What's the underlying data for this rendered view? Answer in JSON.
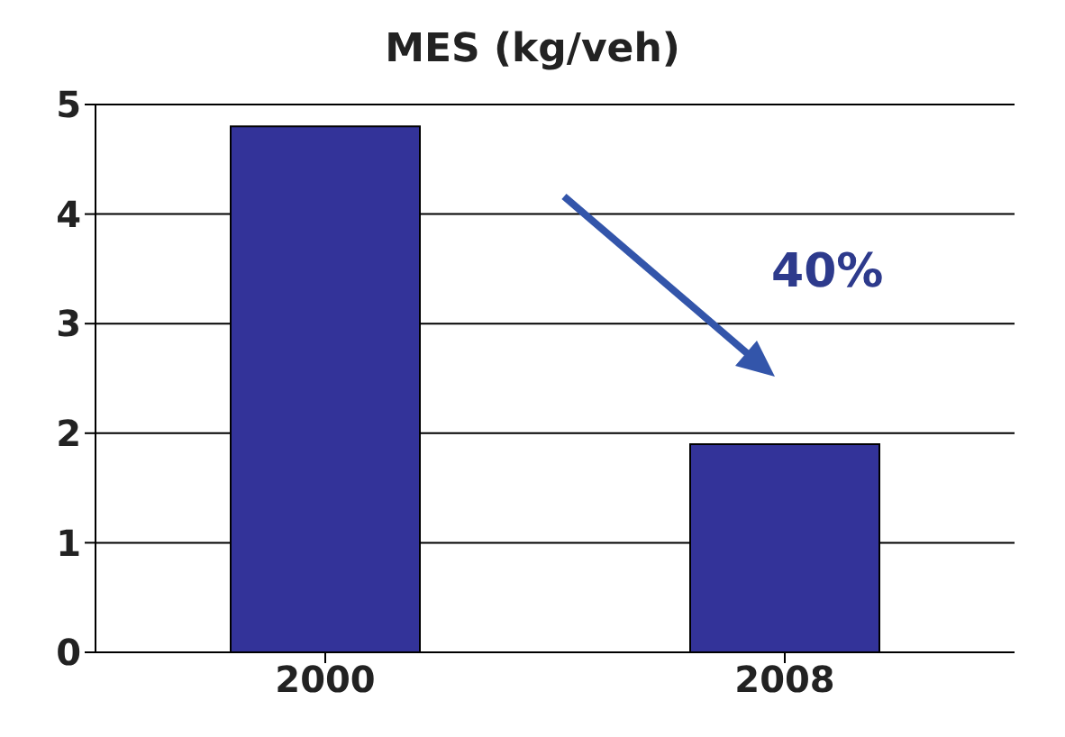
{
  "chart_data": {
    "type": "bar",
    "title": "MES (kg/veh)",
    "categories": [
      "2000",
      "2008"
    ],
    "values": [
      4.8,
      1.9
    ],
    "color": "#333399",
    "ylim": [
      0,
      5
    ],
    "yticks": [
      0,
      1,
      2,
      3,
      4,
      5
    ],
    "grid": "y",
    "annotations": [
      "40%"
    ]
  }
}
